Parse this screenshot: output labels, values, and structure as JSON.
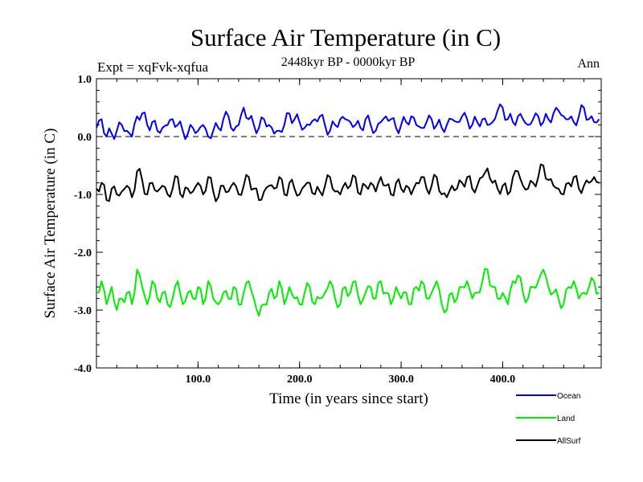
{
  "chart_data": {
    "type": "line",
    "title": "Surface Air Temperature (in C)",
    "subtitle": "2448kyr BP - 0000kyr BP",
    "left_label": "Expt = xqFvk-xqfua",
    "right_label": "Ann",
    "xlabel": "Time (in years since start)",
    "ylabel": "Surface Air Temperature (in C)",
    "xlim": [
      0,
      497
    ],
    "ylim": [
      -4.0,
      1.0
    ],
    "xticks": [
      100,
      200,
      300,
      400
    ],
    "xtick_labels": [
      "100.0",
      "200.0",
      "300.0",
      "400.0"
    ],
    "yticks": [
      1.0,
      0.0,
      -1.0,
      -2.0,
      -3.0,
      -4.0
    ],
    "ytick_labels": [
      "1.0",
      "0.0",
      "-1.0",
      "-2.0",
      "-3.0",
      "-4.0"
    ],
    "reference_line": {
      "y": 0.0,
      "style": "dashed"
    },
    "legend_position": "bottom-right",
    "series": [
      {
        "name": "Ocean",
        "color": "#0000ee",
        "step": 5,
        "values": [
          0.15,
          0.3,
          0.0,
          0.05,
          0.1,
          0.2,
          0.1,
          0.0,
          0.35,
          0.4,
          0.2,
          0.25,
          0.1,
          0.15,
          0.2,
          0.3,
          0.2,
          0.1,
          0.05,
          0.15,
          0.1,
          0.2,
          0.0,
          0.1,
          0.15,
          0.3,
          0.35,
          0.1,
          0.2,
          0.5,
          0.3,
          0.2,
          0.15,
          0.3,
          0.2,
          0.05,
          0.1,
          0.2,
          0.4,
          0.3,
          0.25,
          0.15,
          0.2,
          0.3,
          0.35,
          0.2,
          0.1,
          0.2,
          0.3,
          0.3,
          0.25,
          0.2,
          0.15,
          0.3,
          0.2,
          0.1,
          0.25,
          0.35,
          0.3,
          0.15,
          0.2,
          0.25,
          0.35,
          0.2,
          0.15,
          0.25,
          0.3,
          0.2,
          0.15,
          0.2,
          0.3,
          0.25,
          0.35,
          0.3,
          0.2,
          0.25,
          0.3,
          0.2,
          0.25,
          0.45,
          0.5,
          0.3,
          0.25,
          0.35,
          0.3,
          0.2,
          0.3,
          0.35,
          0.25,
          0.3,
          0.4,
          0.45,
          0.35,
          0.3,
          0.25,
          0.35,
          0.5,
          0.3,
          0.25,
          0.3
        ]
      },
      {
        "name": "Land",
        "color": "#00ee00",
        "step": 5,
        "values": [
          -2.7,
          -2.5,
          -2.9,
          -2.6,
          -3.0,
          -2.8,
          -2.7,
          -2.9,
          -2.3,
          -2.6,
          -2.9,
          -2.5,
          -2.8,
          -2.7,
          -2.9,
          -2.8,
          -2.5,
          -2.9,
          -2.7,
          -2.8,
          -2.6,
          -2.9,
          -2.5,
          -2.8,
          -2.9,
          -2.7,
          -2.8,
          -2.6,
          -2.9,
          -2.7,
          -2.5,
          -2.8,
          -3.1,
          -2.9,
          -2.7,
          -2.8,
          -2.5,
          -2.9,
          -2.6,
          -2.8,
          -2.9,
          -2.7,
          -2.6,
          -2.9,
          -2.8,
          -2.7,
          -2.5,
          -2.8,
          -2.9,
          -2.6,
          -2.7,
          -2.5,
          -2.9,
          -2.7,
          -2.6,
          -2.8,
          -2.5,
          -2.7,
          -2.9,
          -2.6,
          -2.8,
          -2.7,
          -2.9,
          -2.6,
          -2.5,
          -2.8,
          -2.7,
          -2.5,
          -2.9,
          -3.0,
          -2.7,
          -2.8,
          -2.6,
          -2.5,
          -2.8,
          -2.7,
          -2.5,
          -2.3,
          -2.6,
          -2.8,
          -2.7,
          -2.9,
          -2.5,
          -2.4,
          -2.7,
          -2.8,
          -2.6,
          -2.5,
          -2.3,
          -2.6,
          -2.7,
          -2.8,
          -2.9,
          -2.6,
          -2.5,
          -2.8,
          -2.7,
          -2.6,
          -2.5,
          -2.7
        ]
      },
      {
        "name": "AllSurf",
        "color": "#000000",
        "step": 5,
        "values": [
          -0.9,
          -0.8,
          -1.1,
          -0.9,
          -1.0,
          -0.95,
          -0.85,
          -1.05,
          -0.6,
          -0.75,
          -1.0,
          -0.8,
          -0.95,
          -0.85,
          -1.0,
          -0.9,
          -0.7,
          -1.05,
          -0.9,
          -0.95,
          -0.8,
          -1.0,
          -0.7,
          -0.95,
          -1.05,
          -0.85,
          -0.95,
          -0.8,
          -1.0,
          -0.85,
          -0.7,
          -0.9,
          -1.1,
          -0.95,
          -0.85,
          -0.9,
          -0.7,
          -1.0,
          -0.8,
          -0.9,
          -1.0,
          -0.85,
          -0.8,
          -1.0,
          -0.95,
          -0.85,
          -0.7,
          -0.95,
          -1.0,
          -0.8,
          -0.85,
          -0.7,
          -1.0,
          -0.85,
          -0.8,
          -0.95,
          -0.7,
          -0.85,
          -1.0,
          -0.8,
          -0.9,
          -0.85,
          -1.0,
          -0.8,
          -0.7,
          -0.9,
          -0.85,
          -0.7,
          -1.0,
          -1.05,
          -0.85,
          -0.9,
          -0.8,
          -0.7,
          -0.9,
          -0.85,
          -0.7,
          -0.55,
          -0.8,
          -0.9,
          -0.85,
          -1.0,
          -0.7,
          -0.6,
          -0.85,
          -0.9,
          -0.8,
          -0.7,
          -0.5,
          -0.75,
          -0.85,
          -0.9,
          -1.0,
          -0.8,
          -0.7,
          -0.9,
          -0.85,
          -0.8,
          -0.7,
          -0.8
        ]
      }
    ]
  }
}
